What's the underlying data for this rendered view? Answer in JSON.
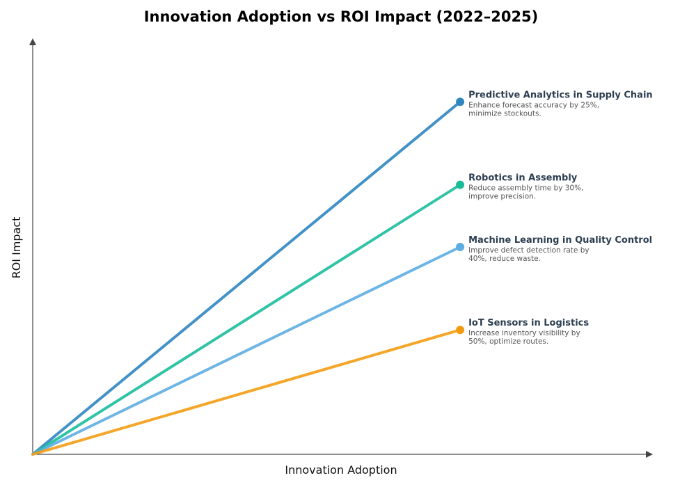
{
  "chart_data": {
    "type": "line",
    "title": "Innovation Adoption vs ROI Impact (2022–2025)",
    "xlabel": "Innovation Adoption",
    "ylabel": "ROI Impact",
    "xlim": [
      0,
      1
    ],
    "ylim": [
      0,
      1
    ],
    "grid": false,
    "legend": "inline labels at line ends (right)",
    "series": [
      {
        "name": "Predictive Analytics in Supply Chain",
        "description": [
          "Enhance forecast accuracy by 25%,",
          "minimize stockouts."
        ],
        "color": "#2e86c1",
        "x": [
          0,
          0.69
        ],
        "y": [
          0,
          0.85
        ]
      },
      {
        "name": "Robotics in Assembly",
        "description": [
          "Reduce assembly time by 30%,",
          "improve precision."
        ],
        "color": "#1abc9c",
        "x": [
          0,
          0.69
        ],
        "y": [
          0,
          0.65
        ]
      },
      {
        "name": "Machine Learning in Quality Control",
        "description": [
          "Improve defect detection rate by",
          "40%, reduce waste."
        ],
        "color": "#5dade2",
        "x": [
          0,
          0.69
        ],
        "y": [
          0,
          0.5
        ]
      },
      {
        "name": "IoT Sensors in Logistics",
        "description": [
          "Increase inventory visibility by",
          "50%, optimize routes."
        ],
        "color": "#f39c12",
        "x": [
          0,
          0.69
        ],
        "y": [
          0,
          0.3
        ]
      }
    ]
  }
}
